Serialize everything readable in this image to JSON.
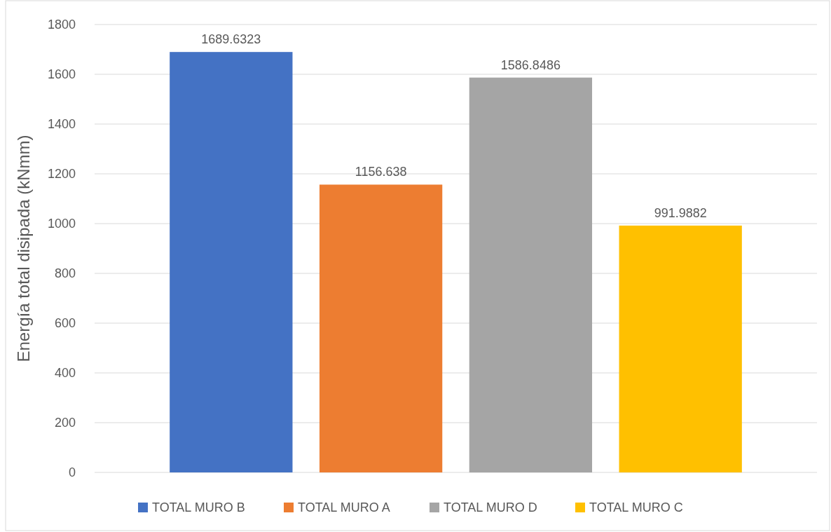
{
  "chart_data": {
    "type": "bar",
    "ylabel": "Energía total disipada (kNmm)",
    "categories": [
      null
    ],
    "series": [
      {
        "name": "TOTAL MURO B",
        "color": "#4472c4",
        "values": [
          1689.6323
        ]
      },
      {
        "name": "TOTAL MURO A",
        "color": "#ed7d31",
        "values": [
          1156.638
        ]
      },
      {
        "name": "TOTAL MURO D",
        "color": "#a5a5a5",
        "values": [
          1586.8486
        ]
      },
      {
        "name": "TOTAL MURO C",
        "color": "#ffc000",
        "values": [
          991.9882
        ]
      }
    ],
    "ylim": [
      0,
      1800
    ],
    "yticks": [
      0,
      200,
      400,
      600,
      800,
      1000,
      1200,
      1400,
      1600,
      1800
    ],
    "grid": "y",
    "legend": "bottom",
    "data_labels": true
  }
}
